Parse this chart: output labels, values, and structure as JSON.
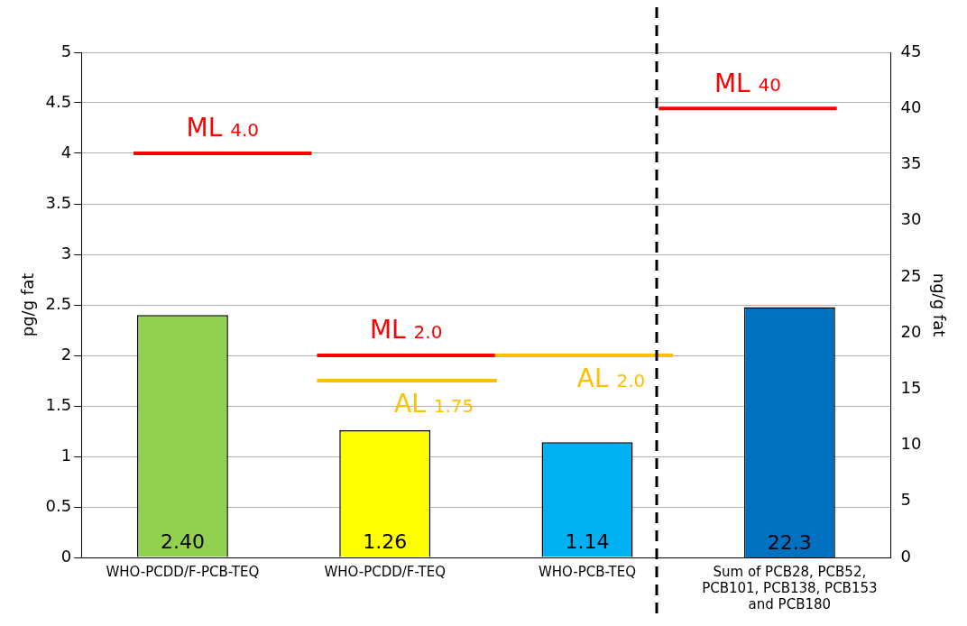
{
  "chart_data": {
    "type": "bar",
    "categories": [
      "WHO-PCDD/F-PCB-TEQ",
      "WHO-PCDD/F-TEQ",
      "WHO-PCB-TEQ",
      "Sum of PCB28, PCB52, PCB101, PCB138, PCB153 and PCB180"
    ],
    "ylabel": "pg/g fat",
    "y2label": "ng/g fat",
    "ylim": [
      0,
      5
    ],
    "yticks": [
      0,
      0.5,
      1,
      1.5,
      2,
      2.5,
      3,
      3.5,
      4,
      4.5,
      5
    ],
    "y2lim": [
      0,
      45
    ],
    "y2ticks": [
      0,
      5,
      10,
      15,
      20,
      25,
      30,
      35,
      40,
      45
    ],
    "grid": "y",
    "legend": false,
    "series": [
      {
        "colors": [
          "#92d050",
          "#ffff00",
          "#00b0f0",
          null
        ],
        "values": [
          2.4,
          1.26,
          1.14,
          null
        ],
        "value_labels": [
          "2.40",
          "1.26",
          "1.14",
          null
        ]
      },
      {
        "axis": "y2",
        "color": "#0070c0",
        "values": [
          null,
          null,
          null,
          22.3
        ],
        "value_labels": [
          null,
          null,
          null,
          "22.3"
        ]
      }
    ],
    "ref_lines": [
      {
        "axis": "y",
        "value": 4.0,
        "label": "ML 4.0",
        "color": "#ff0000"
      },
      {
        "axis": "y",
        "value": 2.0,
        "label": "ML 2.0",
        "color": "#ff0000"
      },
      {
        "axis": "y",
        "value": 1.75,
        "label": "AL 1.75",
        "color": "#ffc000"
      },
      {
        "axis": "y",
        "value": 2.0,
        "label": "AL 2.0",
        "color": "#ffc000"
      },
      {
        "axis": "y2",
        "value": 40,
        "label": "ML 40",
        "color": "#ff0000"
      }
    ]
  }
}
